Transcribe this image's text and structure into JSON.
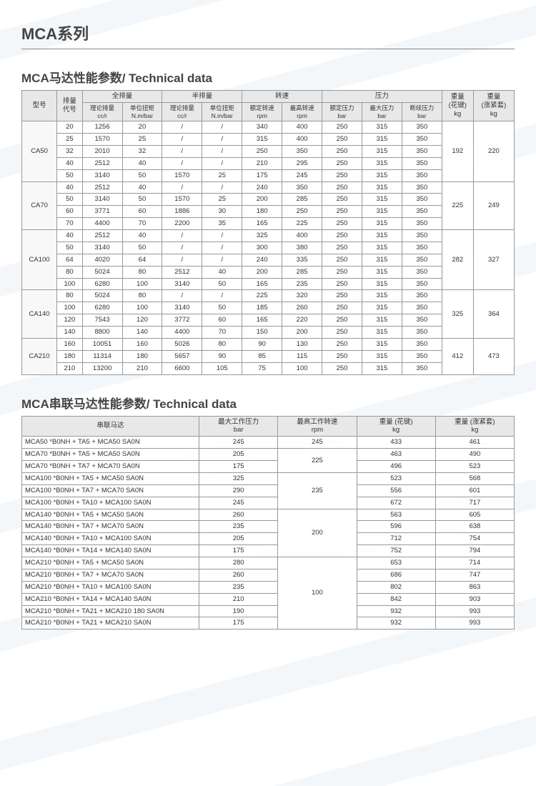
{
  "page_title": "MCA系列",
  "table1": {
    "title": "MCA马达性能参数/ Technical data",
    "header_groups": {
      "model": "型号",
      "code": "排量\n代号",
      "full": "全排量",
      "half": "半排量",
      "speed": "转速",
      "pressure": "压力",
      "w1": "重量\n(花键)\nkg",
      "w2": "重量\n(涨紧套)\nkg"
    },
    "header_sub": {
      "full_disp": "理论排量\ncc/r",
      "full_torq": "单位扭矩\nN.m/bar",
      "half_disp": "理论排量\ncc/r",
      "half_torq": "单位扭矩\nN.m/bar",
      "rated_sp": "额定转速\nrpm",
      "max_sp": "最高转速\nrpm",
      "rated_p": "额定压力\nbar",
      "max_p": "最大压力\nbar",
      "int_p": "断续压力\nbar"
    },
    "models": [
      {
        "name": "CA50",
        "w1": "192",
        "w2": "220",
        "rows": [
          [
            "20",
            "1256",
            "20",
            "/",
            "/",
            "340",
            "400",
            "250",
            "315",
            "350"
          ],
          [
            "25",
            "1570",
            "25",
            "/",
            "/",
            "315",
            "400",
            "250",
            "315",
            "350"
          ],
          [
            "32",
            "2010",
            "32",
            "/",
            "/",
            "250",
            "350",
            "250",
            "315",
            "350"
          ],
          [
            "40",
            "2512",
            "40",
            "/",
            "/",
            "210",
            "295",
            "250",
            "315",
            "350"
          ],
          [
            "50",
            "3140",
            "50",
            "1570",
            "25",
            "175",
            "245",
            "250",
            "315",
            "350"
          ]
        ]
      },
      {
        "name": "CA70",
        "w1": "225",
        "w2": "249",
        "rows": [
          [
            "40",
            "2512",
            "40",
            "/",
            "/",
            "240",
            "350",
            "250",
            "315",
            "350"
          ],
          [
            "50",
            "3140",
            "50",
            "1570",
            "25",
            "200",
            "285",
            "250",
            "315",
            "350"
          ],
          [
            "60",
            "3771",
            "60",
            "1886",
            "30",
            "180",
            "250",
            "250",
            "315",
            "350"
          ],
          [
            "70",
            "4400",
            "70",
            "2200",
            "35",
            "165",
            "225",
            "250",
            "315",
            "350"
          ]
        ]
      },
      {
        "name": "CA100",
        "w1": "282",
        "w2": "327",
        "rows": [
          [
            "40",
            "2512",
            "40",
            "/",
            "/",
            "325",
            "400",
            "250",
            "315",
            "350"
          ],
          [
            "50",
            "3140",
            "50",
            "/",
            "/",
            "300",
            "380",
            "250",
            "315",
            "350"
          ],
          [
            "64",
            "4020",
            "64",
            "/",
            "/",
            "240",
            "335",
            "250",
            "315",
            "350"
          ],
          [
            "80",
            "5024",
            "80",
            "2512",
            "40",
            "200",
            "285",
            "250",
            "315",
            "350"
          ],
          [
            "100",
            "6280",
            "100",
            "3140",
            "50",
            "165",
            "235",
            "250",
            "315",
            "350"
          ]
        ]
      },
      {
        "name": "CA140",
        "w1": "325",
        "w2": "364",
        "rows": [
          [
            "80",
            "5024",
            "80",
            "/",
            "/",
            "225",
            "320",
            "250",
            "315",
            "350"
          ],
          [
            "100",
            "6280",
            "100",
            "3140",
            "50",
            "185",
            "260",
            "250",
            "315",
            "350"
          ],
          [
            "120",
            "7543",
            "120",
            "3772",
            "60",
            "165",
            "220",
            "250",
            "315",
            "350"
          ],
          [
            "140",
            "8800",
            "140",
            "4400",
            "70",
            "150",
            "200",
            "250",
            "315",
            "350"
          ]
        ]
      },
      {
        "name": "CA210",
        "w1": "412",
        "w2": "473",
        "rows": [
          [
            "160",
            "10051",
            "160",
            "5026",
            "80",
            "90",
            "130",
            "250",
            "315",
            "350"
          ],
          [
            "180",
            "11314",
            "180",
            "5657",
            "90",
            "85",
            "115",
            "250",
            "315",
            "350"
          ],
          [
            "210",
            "13200",
            "210",
            "6600",
            "105",
            "75",
            "100",
            "250",
            "315",
            "350"
          ]
        ]
      }
    ]
  },
  "table2": {
    "title": "MCA串联马达性能参数/ Technical data",
    "columns": [
      "串联马达",
      "最大工作压力\nbar",
      "最高工作转速\nrpm",
      "重量 (花键)\nkg",
      "重量 (涨紧套)\nkg"
    ],
    "groups": [
      {
        "speed": "245",
        "rows": [
          [
            "MCA50 *B0NH + TA5  + MCA50 SA0N",
            "245",
            "433",
            "461"
          ]
        ]
      },
      {
        "speed": "225",
        "rows": [
          [
            "MCA70 *B0NH + TA5  + MCA50 SA0N",
            "205",
            "463",
            "490"
          ],
          [
            "MCA70 *B0NH + TA7  + MCA70 SA0N",
            "175",
            "496",
            "523"
          ]
        ]
      },
      {
        "speed": "235",
        "rows": [
          [
            "MCA100 *B0NH + TA5  + MCA50 SA0N",
            "325",
            "523",
            "568"
          ],
          [
            "MCA100 *B0NH + TA7  + MCA70 SA0N",
            "290",
            "556",
            "601"
          ],
          [
            "MCA100 *B0NH + TA10 + MCA100 SA0N",
            "245",
            "672",
            "717"
          ]
        ]
      },
      {
        "speed": "200",
        "rows": [
          [
            "MCA140 *B0NH + TA5  + MCA50 SA0N",
            "260",
            "563",
            "605"
          ],
          [
            "MCA140 *B0NH + TA7  + MCA70 SA0N",
            "235",
            "596",
            "638"
          ],
          [
            "MCA140 *B0NH + TA10 + MCA100 SA0N",
            "205",
            "712",
            "754"
          ],
          [
            "MCA140 *B0NH + TA14 + MCA140 SA0N",
            "175",
            "752",
            "794"
          ]
        ]
      },
      {
        "speed": "100",
        "rows": [
          [
            "MCA210 *B0NH + TA5  + MCA50 SA0N",
            "280",
            "653",
            "714"
          ],
          [
            "MCA210 *B0NH + TA7  + MCA70 SA0N",
            "260",
            "686",
            "747"
          ],
          [
            "MCA210 *B0NH + TA10 + MCA100 SA0N",
            "235",
            "802",
            "863"
          ],
          [
            "MCA210 *B0NH + TA14 + MCA140 SA0N",
            "210",
            "842",
            "903"
          ],
          [
            "MCA210 *B0NH + TA21 + MCA210 180 SA0N",
            "190",
            "932",
            "993"
          ],
          [
            "MCA210 *B0NH + TA21 + MCA210 SA0N",
            "175",
            "932",
            "993"
          ]
        ]
      }
    ]
  }
}
